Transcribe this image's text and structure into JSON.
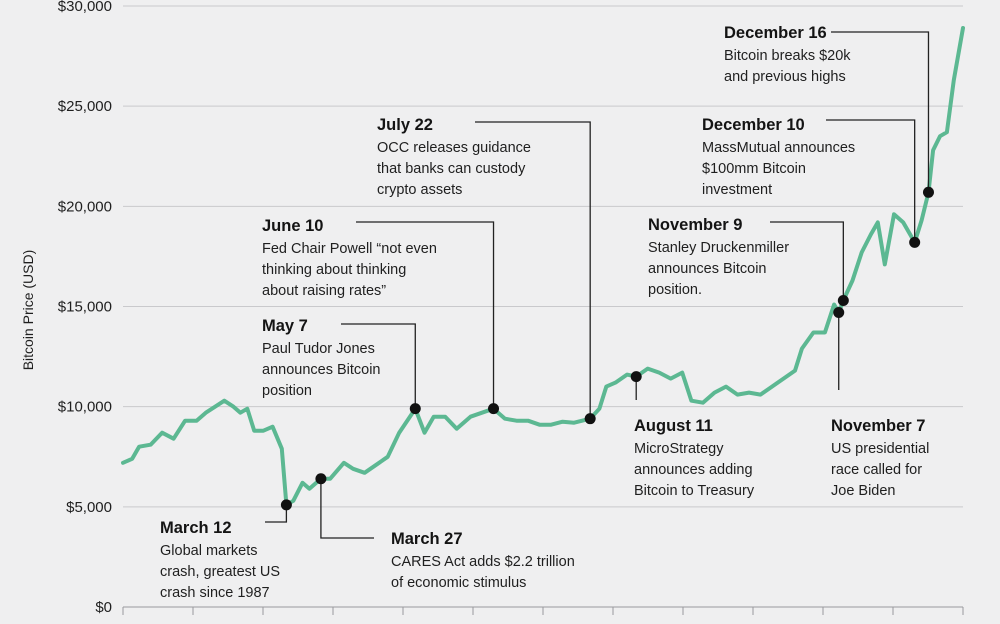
{
  "chart_data": {
    "type": "line",
    "xlabel": "",
    "ylabel": "Bitcoin Price (USD)",
    "ylim": [
      0,
      30000
    ],
    "yticks": [
      {
        "value": 0,
        "label": "$0"
      },
      {
        "value": 5000,
        "label": "$5,000"
      },
      {
        "value": 10000,
        "label": "$10,000"
      },
      {
        "value": 15000,
        "label": "$15,000"
      },
      {
        "value": 20000,
        "label": "$20,000"
      },
      {
        "value": 25000,
        "label": "$25,000"
      },
      {
        "value": 30000,
        "label": "$30,000"
      }
    ],
    "xlim": [
      "2020-01-01",
      "2020-12-31"
    ],
    "grid": true,
    "series": [
      {
        "values": [
          [
            "2020-01-01",
            7200
          ],
          [
            "2020-01-05",
            7400
          ],
          [
            "2020-01-08",
            8000
          ],
          [
            "2020-01-13",
            8100
          ],
          [
            "2020-01-18",
            8700
          ],
          [
            "2020-01-23",
            8400
          ],
          [
            "2020-01-28",
            9300
          ],
          [
            "2020-02-02",
            9300
          ],
          [
            "2020-02-06",
            9700
          ],
          [
            "2020-02-10",
            10000
          ],
          [
            "2020-02-14",
            10300
          ],
          [
            "2020-02-18",
            10000
          ],
          [
            "2020-02-21",
            9700
          ],
          [
            "2020-02-24",
            9900
          ],
          [
            "2020-02-27",
            8800
          ],
          [
            "2020-03-02",
            8800
          ],
          [
            "2020-03-06",
            9000
          ],
          [
            "2020-03-10",
            7900
          ],
          [
            "2020-03-12",
            5100
          ],
          [
            "2020-03-15",
            5300
          ],
          [
            "2020-03-19",
            6200
          ],
          [
            "2020-03-22",
            5900
          ],
          [
            "2020-03-27",
            6400
          ],
          [
            "2020-03-31",
            6400
          ],
          [
            "2020-04-06",
            7200
          ],
          [
            "2020-04-10",
            6900
          ],
          [
            "2020-04-15",
            6700
          ],
          [
            "2020-04-20",
            7100
          ],
          [
            "2020-04-25",
            7500
          ],
          [
            "2020-04-30",
            8700
          ],
          [
            "2020-05-07",
            9900
          ],
          [
            "2020-05-11",
            8700
          ],
          [
            "2020-05-15",
            9500
          ],
          [
            "2020-05-20",
            9500
          ],
          [
            "2020-05-25",
            8900
          ],
          [
            "2020-05-31",
            9500
          ],
          [
            "2020-06-05",
            9700
          ],
          [
            "2020-06-10",
            9900
          ],
          [
            "2020-06-15",
            9400
          ],
          [
            "2020-06-20",
            9300
          ],
          [
            "2020-06-25",
            9300
          ],
          [
            "2020-06-30",
            9100
          ],
          [
            "2020-07-05",
            9100
          ],
          [
            "2020-07-10",
            9250
          ],
          [
            "2020-07-15",
            9200
          ],
          [
            "2020-07-22",
            9400
          ],
          [
            "2020-07-26",
            9900
          ],
          [
            "2020-07-29",
            11000
          ],
          [
            "2020-08-02",
            11200
          ],
          [
            "2020-08-07",
            11600
          ],
          [
            "2020-08-11",
            11500
          ],
          [
            "2020-08-16",
            11900
          ],
          [
            "2020-08-21",
            11700
          ],
          [
            "2020-08-26",
            11400
          ],
          [
            "2020-08-31",
            11700
          ],
          [
            "2020-09-04",
            10300
          ],
          [
            "2020-09-09",
            10200
          ],
          [
            "2020-09-14",
            10700
          ],
          [
            "2020-09-19",
            11000
          ],
          [
            "2020-09-24",
            10600
          ],
          [
            "2020-09-29",
            10700
          ],
          [
            "2020-10-04",
            10600
          ],
          [
            "2020-10-09",
            11000
          ],
          [
            "2020-10-14",
            11400
          ],
          [
            "2020-10-19",
            11800
          ],
          [
            "2020-10-22",
            12900
          ],
          [
            "2020-10-27",
            13700
          ],
          [
            "2020-11-01",
            13700
          ],
          [
            "2020-11-05",
            15100
          ],
          [
            "2020-11-07",
            14700
          ],
          [
            "2020-11-09",
            15300
          ],
          [
            "2020-11-13",
            16300
          ],
          [
            "2020-11-17",
            17700
          ],
          [
            "2020-11-21",
            18600
          ],
          [
            "2020-11-24",
            19200
          ],
          [
            "2020-11-27",
            17100
          ],
          [
            "2020-12-01",
            19600
          ],
          [
            "2020-12-05",
            19200
          ],
          [
            "2020-12-10",
            18200
          ],
          [
            "2020-12-13",
            19300
          ],
          [
            "2020-12-16",
            20700
          ],
          [
            "2020-12-18",
            22800
          ],
          [
            "2020-12-21",
            23500
          ],
          [
            "2020-12-24",
            23700
          ],
          [
            "2020-12-27",
            26300
          ],
          [
            "2020-12-31",
            28900
          ]
        ]
      }
    ],
    "annotations": [
      {
        "date": "2020-03-12",
        "value": 5100,
        "title": "March 12",
        "lines": [
          "Global markets",
          "crash, greatest US",
          "crash since 1987"
        ]
      },
      {
        "date": "2020-03-27",
        "value": 6400,
        "title": "March 27",
        "lines": [
          "CARES Act adds $2.2 trillion",
          "of economic stimulus"
        ]
      },
      {
        "date": "2020-05-07",
        "value": 9900,
        "title": "May 7",
        "lines": [
          "Paul Tudor Jones",
          "announces Bitcoin",
          "position"
        ]
      },
      {
        "date": "2020-06-10",
        "value": 9900,
        "title": "June 10",
        "lines": [
          "Fed Chair Powell “not even",
          "thinking about thinking",
          "about raising rates”"
        ]
      },
      {
        "date": "2020-07-22",
        "value": 9400,
        "title": "July 22",
        "lines": [
          "OCC releases guidance",
          "that banks can custody",
          "crypto assets"
        ]
      },
      {
        "date": "2020-08-11",
        "value": 11500,
        "title": "August 11",
        "lines": [
          "MicroStrategy",
          "announces adding",
          "Bitcoin to Treasury"
        ]
      },
      {
        "date": "2020-11-07",
        "value": 14700,
        "title": "November 7",
        "lines": [
          "US presidential",
          "race called for",
          "Joe Biden"
        ]
      },
      {
        "date": "2020-11-09",
        "value": 15300,
        "title": "November 9",
        "lines": [
          "Stanley Druckenmiller",
          "announces Bitcoin",
          "position."
        ]
      },
      {
        "date": "2020-12-10",
        "value": 18200,
        "title": "December 10",
        "lines": [
          "MassMutual announces",
          "$100mm Bitcoin",
          "investment"
        ]
      },
      {
        "date": "2020-12-16",
        "value": 20700,
        "title": "December 16",
        "lines": [
          "Bitcoin breaks $20k",
          "and previous highs"
        ]
      }
    ],
    "colors": {
      "line": "#5cb892",
      "marker": "#111111",
      "background": "#efeff0"
    }
  }
}
